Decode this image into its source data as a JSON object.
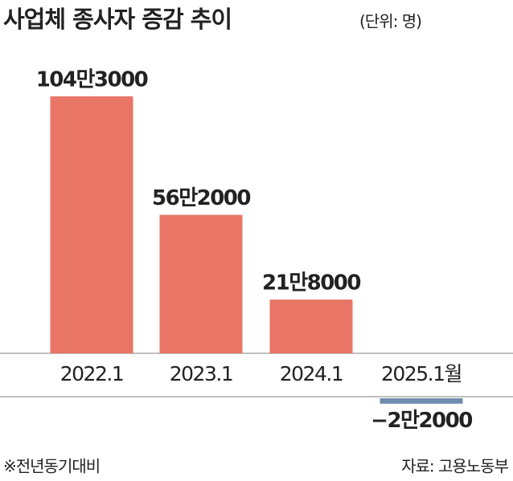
{
  "chart_data": {
    "type": "bar",
    "title": "사업체 종사자 증감 추이",
    "subtitle": "(단위: 명)",
    "categories": [
      "2022.1",
      "2023.1",
      "2024.1",
      "2025.1월"
    ],
    "values": [
      1043000,
      562000,
      218000,
      -22000
    ],
    "value_labels": [
      "104만3000",
      "56만2000",
      "21만8000",
      "−2만2000"
    ],
    "color": "#e87565",
    "negative_color": "#6f8db0",
    "note": "※전년동기대비",
    "source": "자료: 고용노동부"
  }
}
